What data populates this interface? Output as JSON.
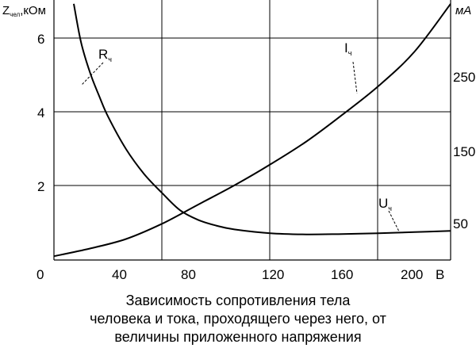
{
  "chart_data": {
    "type": "line",
    "x_unit": "В",
    "xlim": [
      0,
      220
    ],
    "x_ticks": [
      "0",
      "40",
      "80",
      "120",
      "160",
      "200"
    ],
    "left_axis": {
      "label": "Z",
      "label_sub": "чел",
      "label_suffix": ",кОм",
      "ylim": [
        0,
        6.8
      ],
      "ticks": [
        "2",
        "4",
        "6"
      ]
    },
    "right_axis": {
      "unit": "мА",
      "ticks": [
        "50",
        "150",
        "250"
      ]
    },
    "series": [
      {
        "name": "R",
        "name_sub": "ч",
        "axis": "left",
        "x": [
          11,
          15,
          20,
          25,
          30,
          40,
          50,
          60,
          70,
          80,
          90,
          100,
          120,
          140,
          160,
          180,
          200,
          220
        ],
        "y": [
          6.7,
          5.7,
          4.9,
          4.3,
          3.75,
          2.9,
          2.25,
          1.75,
          1.3,
          1.05,
          0.9,
          0.8,
          0.7,
          0.67,
          0.68,
          0.7,
          0.73,
          0.76
        ]
      },
      {
        "name": "I",
        "name_sub": "ч",
        "axis": "left",
        "x": [
          0,
          20,
          40,
          60,
          80,
          100,
          120,
          140,
          160,
          180,
          200,
          220
        ],
        "y": [
          0.1,
          0.3,
          0.55,
          0.95,
          1.45,
          1.95,
          2.5,
          3.1,
          3.8,
          4.55,
          5.45,
          6.7
        ]
      }
    ],
    "annotations": [
      {
        "text": "R",
        "sub": "ч"
      },
      {
        "text": "I",
        "sub": "ч"
      },
      {
        "text": "U",
        "sub": "ч"
      }
    ]
  },
  "caption": [
    "Зависимость сопротивления тела",
    "человека и тока, проходящего через него, от",
    "величины приложенного напряжения"
  ]
}
